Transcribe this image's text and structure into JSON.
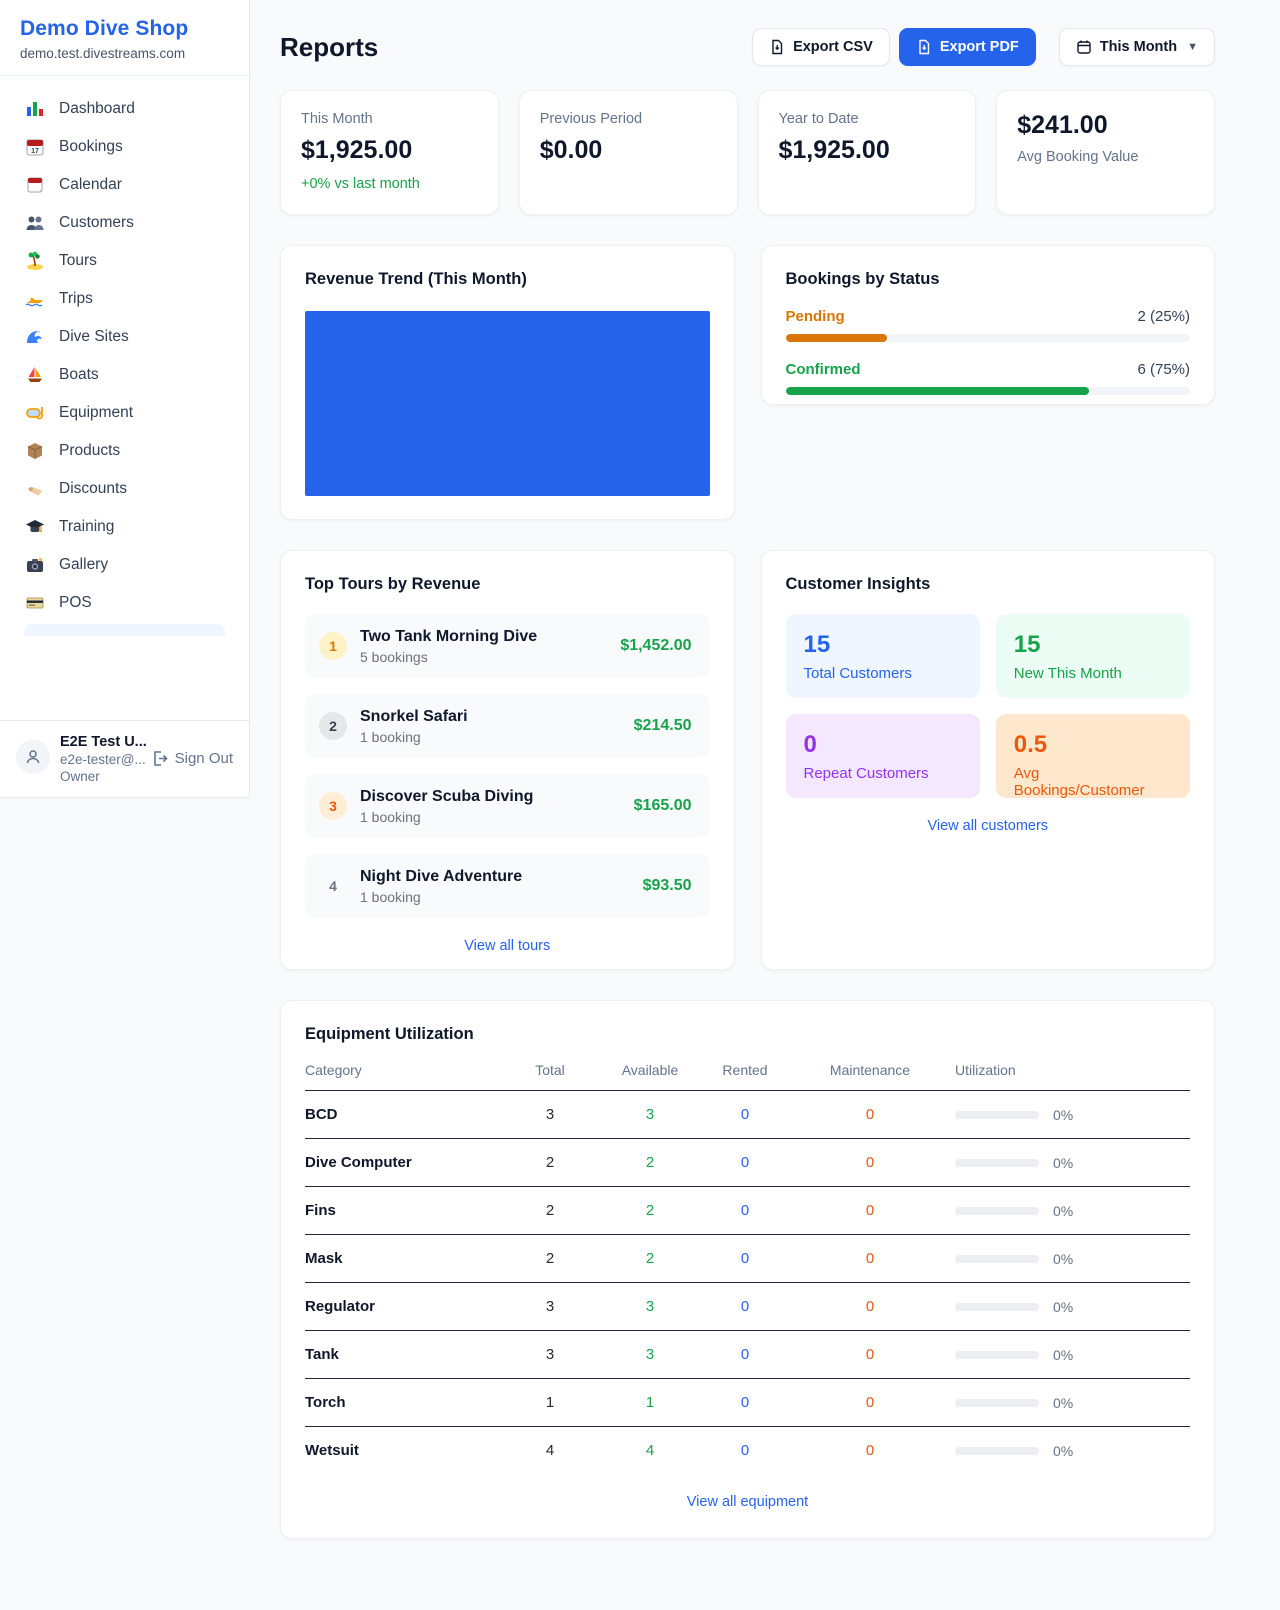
{
  "app": {
    "name": "Demo Dive Shop",
    "domain": "demo.test.divestreams.com"
  },
  "sidebar": {
    "items": [
      {
        "icon": "bar-chart-icon",
        "label": "Dashboard"
      },
      {
        "icon": "calendar-date-icon",
        "label": "Bookings"
      },
      {
        "icon": "tear-calendar-icon",
        "label": "Calendar"
      },
      {
        "icon": "people-icon",
        "label": "Customers"
      },
      {
        "icon": "island-icon",
        "label": "Tours"
      },
      {
        "icon": "speedboat-icon",
        "label": "Trips"
      },
      {
        "icon": "wave-icon",
        "label": "Dive Sites"
      },
      {
        "icon": "sailboat-icon",
        "label": "Boats"
      },
      {
        "icon": "dive-mask-icon",
        "label": "Equipment"
      },
      {
        "icon": "package-icon",
        "label": "Products"
      },
      {
        "icon": "tag-icon",
        "label": "Discounts"
      },
      {
        "icon": "grad-cap-icon",
        "label": "Training"
      },
      {
        "icon": "camera-icon",
        "label": "Gallery"
      },
      {
        "icon": "credit-card-icon",
        "label": "POS"
      }
    ]
  },
  "user": {
    "name": "E2E Test U...",
    "email": "e2e-tester@...",
    "role": "Owner",
    "sign_out": "Sign Out"
  },
  "header": {
    "title": "Reports",
    "export_csv": "Export CSV",
    "export_pdf": "Export PDF",
    "period": "This Month"
  },
  "stats": [
    {
      "label": "This Month",
      "value": "$1,925.00",
      "delta": "+0% vs last month"
    },
    {
      "label": "Previous Period",
      "value": "$0.00"
    },
    {
      "label": "Year to Date",
      "value": "$1,925.00"
    },
    {
      "label": "Avg Booking Value",
      "value": "$241.00"
    }
  ],
  "revenue_trend": {
    "title": "Revenue Trend (This Month)",
    "bar_color": "#2563eb"
  },
  "chart_data": {
    "type": "bar",
    "title": "Revenue Trend (This Month)",
    "categories": [
      "This Month"
    ],
    "values": [
      1925
    ],
    "note": "single full-width solid blue bar, no axes or labels"
  },
  "bookings_by_status": {
    "title": "Bookings by Status",
    "rows": [
      {
        "label": "Pending",
        "count": "2 (25%)",
        "pct": 25,
        "color": "#d97706"
      },
      {
        "label": "Confirmed",
        "count": "6 (75%)",
        "pct": 75,
        "color": "#16a34a"
      }
    ]
  },
  "top_tours": {
    "title": "Top Tours by Revenue",
    "link": "View all tours",
    "items": [
      {
        "rank": "1",
        "name": "Two Tank Morning Dive",
        "bookings": "5 bookings",
        "amount": "$1,452.00"
      },
      {
        "rank": "2",
        "name": "Snorkel Safari",
        "bookings": "1 booking",
        "amount": "$214.50"
      },
      {
        "rank": "3",
        "name": "Discover Scuba Diving",
        "bookings": "1 booking",
        "amount": "$165.00"
      },
      {
        "rank": "4",
        "name": "Night Dive Adventure",
        "bookings": "1 booking",
        "amount": "$93.50"
      }
    ]
  },
  "customer_insights": {
    "title": "Customer Insights",
    "link": "View all customers",
    "tiles": [
      {
        "value": "15",
        "label": "Total Customers",
        "color": "#2563eb",
        "bg": "#eff6ff"
      },
      {
        "value": "15",
        "label": "New This Month",
        "color": "#16a34a",
        "bg": "#ecfdf5"
      },
      {
        "value": "0",
        "label": "Repeat Customers",
        "color": "#9333ea",
        "bg": "#f3e8ff"
      },
      {
        "value": "0.5",
        "label": "Avg Bookings/Customer",
        "color": "#ea580c",
        "bg": "#fde8cd"
      }
    ]
  },
  "equipment": {
    "title": "Equipment Utilization",
    "link": "View all equipment",
    "headers": [
      "Category",
      "Total",
      "Available",
      "Rented",
      "Maintenance",
      "Utilization"
    ],
    "rows": [
      {
        "category": "BCD",
        "total": "3",
        "available": "3",
        "rented": "0",
        "maintenance": "0",
        "utilization": "0%"
      },
      {
        "category": "Dive Computer",
        "total": "2",
        "available": "2",
        "rented": "0",
        "maintenance": "0",
        "utilization": "0%"
      },
      {
        "category": "Fins",
        "total": "2",
        "available": "2",
        "rented": "0",
        "maintenance": "0",
        "utilization": "0%"
      },
      {
        "category": "Mask",
        "total": "2",
        "available": "2",
        "rented": "0",
        "maintenance": "0",
        "utilization": "0%"
      },
      {
        "category": "Regulator",
        "total": "3",
        "available": "3",
        "rented": "0",
        "maintenance": "0",
        "utilization": "0%"
      },
      {
        "category": "Tank",
        "total": "3",
        "available": "3",
        "rented": "0",
        "maintenance": "0",
        "utilization": "0%"
      },
      {
        "category": "Torch",
        "total": "1",
        "available": "1",
        "rented": "0",
        "maintenance": "0",
        "utilization": "0%"
      },
      {
        "category": "Wetsuit",
        "total": "4",
        "available": "4",
        "rented": "0",
        "maintenance": "0",
        "utilization": "0%"
      }
    ]
  }
}
